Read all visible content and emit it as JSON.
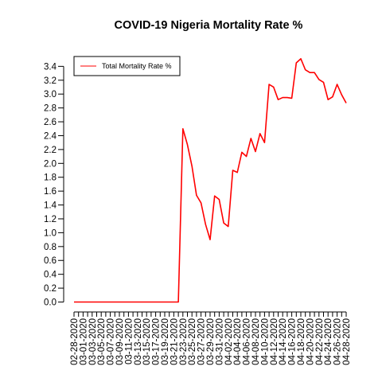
{
  "chart_data": {
    "type": "line",
    "title": "COVID-19 Nigeria Mortality Rate %",
    "xlabel": "",
    "ylabel": "",
    "ylim": [
      0,
      3.5
    ],
    "y_ticks": [
      "0.0",
      "0.2",
      "0.4",
      "0.6",
      "0.8",
      "1.0",
      "1.2",
      "1.4",
      "1.6",
      "1.8",
      "2.0",
      "2.2",
      "2.4",
      "2.6",
      "2.8",
      "3.0",
      "3.2",
      "3.4"
    ],
    "x_tick_labels": [
      "02-28-2020",
      "03-01-2020",
      "03-03-2020",
      "03-05-2020",
      "03-07-2020",
      "03-09-2020",
      "03-11-2020",
      "03-13-2020",
      "03-15-2020",
      "03-17-2020",
      "03-19-2020",
      "03-21-2020",
      "03-23-2020",
      "03-25-2020",
      "03-27-2020",
      "03-29-2020",
      "03-31-2020",
      "04-02-2020",
      "04-04-2020",
      "04-06-2020",
      "04-08-2020",
      "04-10-2020",
      "04-12-2020",
      "04-14-2020",
      "04-16-2020",
      "04-18-2020",
      "04-20-2020",
      "04-22-2020",
      "04-24-2020",
      "04-26-2020",
      "04-28-2020"
    ],
    "grid": false,
    "legend_position": "top-left",
    "colors": {
      "series": "#ff0000",
      "axis": "#000000"
    },
    "x": [
      "02-28-2020",
      "02-29-2020",
      "03-01-2020",
      "03-02-2020",
      "03-03-2020",
      "03-04-2020",
      "03-05-2020",
      "03-06-2020",
      "03-07-2020",
      "03-08-2020",
      "03-09-2020",
      "03-10-2020",
      "03-11-2020",
      "03-12-2020",
      "03-13-2020",
      "03-14-2020",
      "03-15-2020",
      "03-16-2020",
      "03-17-2020",
      "03-18-2020",
      "03-19-2020",
      "03-20-2020",
      "03-21-2020",
      "03-22-2020",
      "03-23-2020",
      "03-24-2020",
      "03-25-2020",
      "03-26-2020",
      "03-27-2020",
      "03-28-2020",
      "03-29-2020",
      "03-30-2020",
      "03-31-2020",
      "04-01-2020",
      "04-02-2020",
      "04-03-2020",
      "04-04-2020",
      "04-05-2020",
      "04-06-2020",
      "04-07-2020",
      "04-08-2020",
      "04-09-2020",
      "04-10-2020",
      "04-11-2020",
      "04-12-2020",
      "04-13-2020",
      "04-14-2020",
      "04-15-2020",
      "04-16-2020",
      "04-17-2020",
      "04-18-2020",
      "04-19-2020",
      "04-20-2020",
      "04-21-2020",
      "04-22-2020",
      "04-23-2020",
      "04-24-2020",
      "04-25-2020",
      "04-26-2020",
      "04-27-2020",
      "04-28-2020"
    ],
    "series": [
      {
        "name": "Total Mortality Rate %",
        "values": [
          0,
          0,
          0,
          0,
          0,
          0,
          0,
          0,
          0,
          0,
          0,
          0,
          0,
          0,
          0,
          0,
          0,
          0,
          0,
          0,
          0,
          0,
          0,
          0,
          2.5,
          2.27,
          1.96,
          1.54,
          1.43,
          1.12,
          0.9,
          1.53,
          1.48,
          1.14,
          1.09,
          1.9,
          1.87,
          2.16,
          2.1,
          2.36,
          2.17,
          2.43,
          2.3,
          3.14,
          3.1,
          2.92,
          2.95,
          2.95,
          2.94,
          3.45,
          3.51,
          3.35,
          3.31,
          3.31,
          3.21,
          3.17,
          2.92,
          2.96,
          3.14,
          2.99,
          2.87
        ]
      }
    ]
  }
}
